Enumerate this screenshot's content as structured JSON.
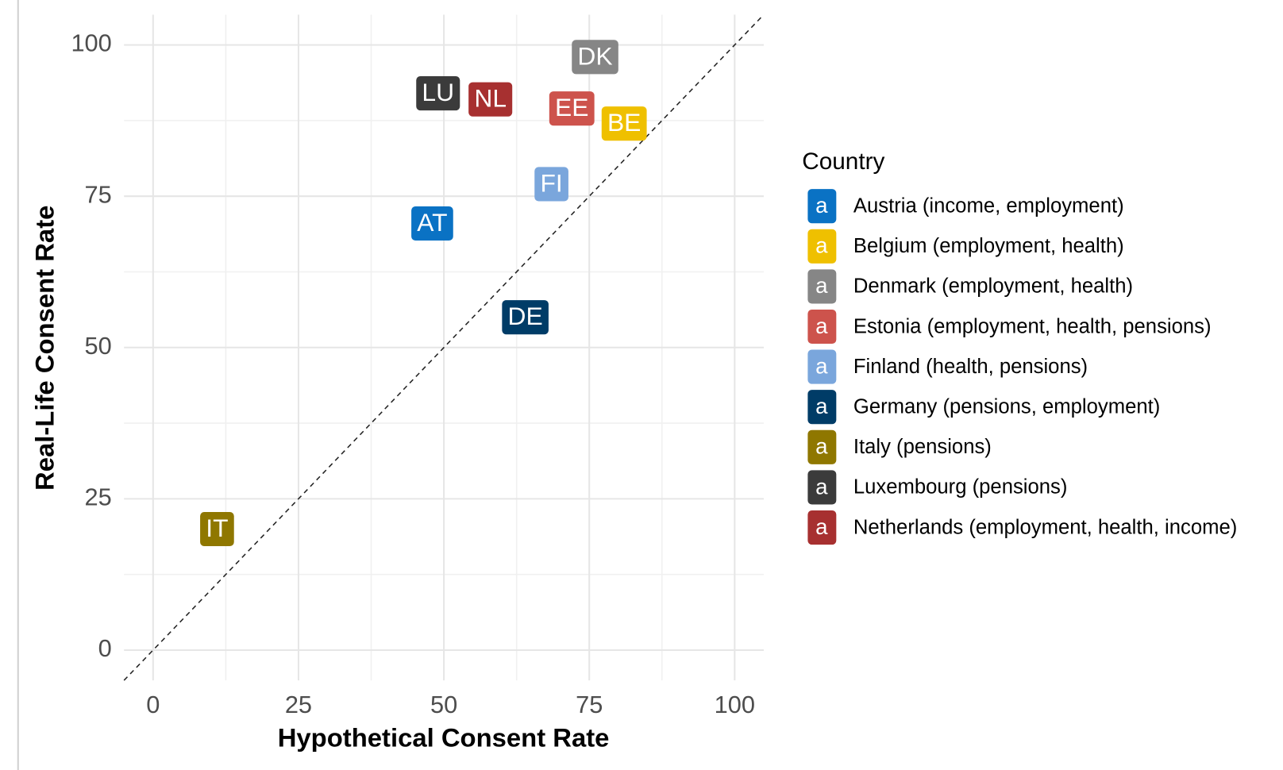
{
  "chart_data": {
    "type": "scatter",
    "xlabel": "Hypothetical Consent Rate",
    "ylabel": "Real-Life Consent Rate",
    "xlim": [
      -5,
      105
    ],
    "ylim": [
      -5,
      105
    ],
    "xticks": [
      0,
      25,
      50,
      75,
      100
    ],
    "yticks": [
      0,
      25,
      50,
      75,
      100
    ],
    "grid": true,
    "legend_title": "Country",
    "legend_key_text": "a",
    "legend_position": "right",
    "series": [
      {
        "name": "Austria (income, employment)",
        "label": "AT",
        "color": "#0a72c4",
        "x": 48,
        "y": 70.5
      },
      {
        "name": "Belgium (employment, health)",
        "label": "BE",
        "color": "#efc000",
        "x": 81,
        "y": 87
      },
      {
        "name": "Denmark (employment, health)",
        "label": "DK",
        "color": "#868686",
        "x": 76,
        "y": 98
      },
      {
        "name": "Estonia (employment, health, pensions)",
        "label": "EE",
        "color": "#cd534c",
        "x": 72,
        "y": 89.5
      },
      {
        "name": "Finland (health, pensions)",
        "label": "FI",
        "color": "#7aa6dc",
        "x": 68.5,
        "y": 77
      },
      {
        "name": "Germany (pensions, employment)",
        "label": "DE",
        "color": "#003c67",
        "x": 64,
        "y": 55
      },
      {
        "name": "Italy (pensions)",
        "label": "IT",
        "color": "#8f7700",
        "x": 11,
        "y": 20
      },
      {
        "name": "Luxembourg (pensions)",
        "label": "LU",
        "color": "#3b3b3b",
        "x": 49,
        "y": 92
      },
      {
        "name": "Netherlands (employment, health, income)",
        "label": "NL",
        "color": "#a73030",
        "x": 58,
        "y": 91
      }
    ]
  }
}
